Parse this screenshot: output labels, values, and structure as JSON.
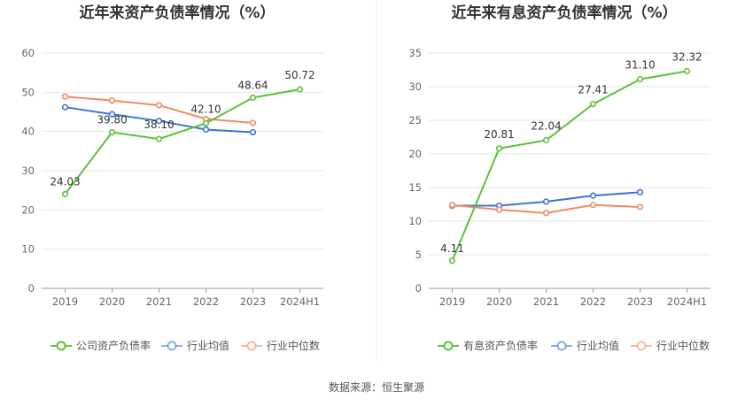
{
  "source_text": "数据来源：恒生聚源",
  "chart_data": [
    {
      "type": "line",
      "title": "近年来资产负债率情况（%）",
      "categories": [
        "2019",
        "2020",
        "2021",
        "2022",
        "2023",
        "2024H1"
      ],
      "ylim": [
        0,
        60
      ],
      "yticks": [
        0,
        10,
        20,
        30,
        40,
        50,
        60
      ],
      "grid": true,
      "legend_position": "bottom",
      "series": [
        {
          "name": "公司资产负债率",
          "color": "#5ac23b",
          "values": [
            24.03,
            39.8,
            38.1,
            42.1,
            48.64,
            50.72
          ],
          "labels": [
            "24.03",
            "39.80",
            "38.10",
            "42.10",
            "48.64",
            "50.72"
          ]
        },
        {
          "name": "行业均值",
          "color": "#3e73d6",
          "values": [
            46.2,
            44.4,
            42.7,
            40.5,
            39.8,
            null
          ]
        },
        {
          "name": "行业中位数",
          "color": "#ef8a62",
          "values": [
            48.9,
            47.9,
            46.7,
            43.2,
            42.2,
            null
          ]
        }
      ]
    },
    {
      "type": "line",
      "title": "近年来有息资产负债率情况（%）",
      "categories": [
        "2019",
        "2020",
        "2021",
        "2022",
        "2023",
        "2024H1"
      ],
      "ylim": [
        0,
        35
      ],
      "yticks": [
        0,
        5,
        10,
        15,
        20,
        25,
        30,
        35
      ],
      "grid": true,
      "legend_position": "bottom",
      "series": [
        {
          "name": "有息资产负债率",
          "color": "#5ac23b",
          "values": [
            4.11,
            20.81,
            22.04,
            27.41,
            31.1,
            32.32
          ],
          "labels": [
            "4.11",
            "20.81",
            "22.04",
            "27.41",
            "31.10",
            "32.32"
          ]
        },
        {
          "name": "行业均值",
          "color": "#3e73d6",
          "values": [
            12.3,
            12.3,
            12.9,
            13.8,
            14.3,
            null
          ]
        },
        {
          "name": "行业中位数",
          "color": "#ef8a62",
          "values": [
            12.4,
            11.7,
            11.2,
            12.4,
            12.1,
            null
          ]
        }
      ]
    }
  ]
}
